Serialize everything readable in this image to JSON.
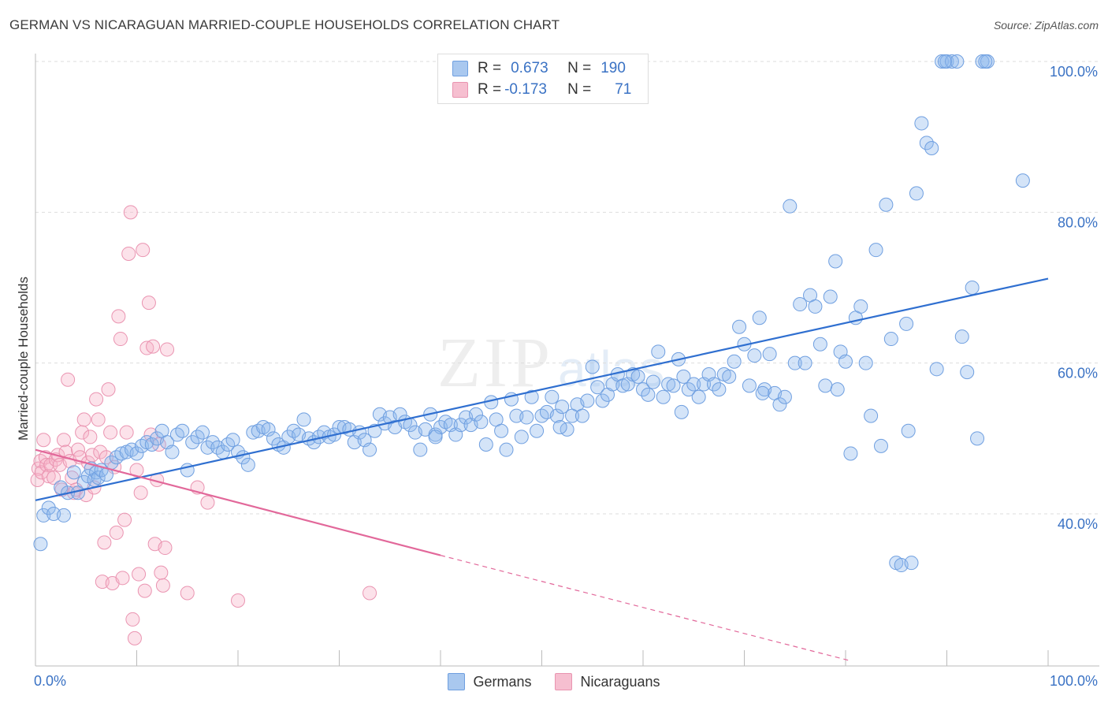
{
  "header": {
    "title": "GERMAN VS NICARAGUAN MARRIED-COUPLE HOUSEHOLDS CORRELATION CHART",
    "source": "Source: ZipAtlas.com"
  },
  "legend": {
    "r_label": "R =",
    "n_label": "N =",
    "rows": [
      {
        "r": "0.673",
        "n": "190",
        "color": "#a9c8ef",
        "border": "#6f9fe0"
      },
      {
        "r": "-0.173",
        "n": "71",
        "color": "#f6bfd0",
        "border": "#e994b0"
      }
    ]
  },
  "colors": {
    "german_fill": "rgba(143,184,236,0.38)",
    "german_stroke": "#6f9fe0",
    "german_line": "#2f6fd0",
    "nicaraguan_fill": "rgba(246,180,200,0.38)",
    "nicaraguan_stroke": "#ea94b1",
    "nicaraguan_line": "#e2689a",
    "axis_text": "#3a72c4",
    "grid": "#dddddd"
  },
  "chart_data": {
    "type": "scatter",
    "title": "GERMAN VS NICARAGUAN MARRIED-COUPLE HOUSEHOLDS CORRELATION CHART",
    "ylabel": "Married-couple Households",
    "xlabel": "",
    "xlim": [
      0,
      100
    ],
    "ylim": [
      21,
      102
    ],
    "x_tick_labels": [
      "0.0%",
      "100.0%"
    ],
    "y_ticks": [
      40,
      60,
      80,
      100
    ],
    "y_tick_labels": [
      "40.0%",
      "60.0%",
      "80.0%",
      "100.0%"
    ],
    "grid": true,
    "legend_position": "top-center",
    "series": [
      {
        "name": "Germans",
        "r": 0.673,
        "n": 190,
        "trend": [
          [
            0,
            41.8
          ],
          [
            100,
            71.2
          ]
        ],
        "points": [
          [
            0.5,
            36
          ],
          [
            0.8,
            39.8
          ],
          [
            1.3,
            40.8
          ],
          [
            1.8,
            40
          ],
          [
            2.5,
            43.5
          ],
          [
            2.8,
            39.8
          ],
          [
            3.2,
            42.8
          ],
          [
            3.8,
            45.5
          ],
          [
            4.2,
            42.8
          ],
          [
            4.8,
            44.2
          ],
          [
            5.2,
            45
          ],
          [
            5.5,
            46
          ],
          [
            5.8,
            44.5
          ],
          [
            6,
            45.5
          ],
          [
            6.2,
            44.8
          ],
          [
            6.5,
            45.8
          ],
          [
            7,
            45.2
          ],
          [
            7.5,
            46.8
          ],
          [
            8,
            47.5
          ],
          [
            8.5,
            48
          ],
          [
            9,
            48.2
          ],
          [
            9.5,
            48.5
          ],
          [
            10,
            48
          ],
          [
            10.5,
            49
          ],
          [
            11,
            49.5
          ],
          [
            11.5,
            49.2
          ],
          [
            12,
            50
          ],
          [
            12.5,
            51
          ],
          [
            13,
            49.5
          ],
          [
            13.5,
            48.2
          ],
          [
            14,
            50.5
          ],
          [
            14.5,
            51
          ],
          [
            15,
            45.8
          ],
          [
            15.5,
            49.5
          ],
          [
            16,
            50.2
          ],
          [
            16.5,
            50.8
          ],
          [
            17,
            48.8
          ],
          [
            17.5,
            49.5
          ],
          [
            18,
            48.8
          ],
          [
            18.5,
            48.2
          ],
          [
            19,
            49.2
          ],
          [
            19.5,
            49.8
          ],
          [
            20,
            48.2
          ],
          [
            20.5,
            47.5
          ],
          [
            21,
            46.5
          ],
          [
            21.5,
            50.8
          ],
          [
            22,
            51
          ],
          [
            22.5,
            51.5
          ],
          [
            23,
            51.2
          ],
          [
            23.5,
            50
          ],
          [
            24,
            49.2
          ],
          [
            24.5,
            48.8
          ],
          [
            25,
            50.2
          ],
          [
            25.5,
            51
          ],
          [
            26,
            50.5
          ],
          [
            26.5,
            52.5
          ],
          [
            27,
            50
          ],
          [
            27.5,
            49.5
          ],
          [
            28,
            50.2
          ],
          [
            28.5,
            50.8
          ],
          [
            29,
            50.2
          ],
          [
            29.5,
            50.5
          ],
          [
            30,
            51.5
          ],
          [
            30.5,
            51.5
          ],
          [
            31,
            51.2
          ],
          [
            31.5,
            49.5
          ],
          [
            32,
            50.8
          ],
          [
            32.5,
            49.8
          ],
          [
            33,
            48.5
          ],
          [
            33.5,
            51
          ],
          [
            34,
            53.2
          ],
          [
            34.5,
            52
          ],
          [
            35,
            52.8
          ],
          [
            35.5,
            51.5
          ],
          [
            36,
            53.2
          ],
          [
            36.5,
            52.2
          ],
          [
            37,
            51.8
          ],
          [
            37.5,
            50.8
          ],
          [
            38,
            48.5
          ],
          [
            38.5,
            51.2
          ],
          [
            39,
            53.2
          ],
          [
            39.5,
            50.5
          ],
          [
            40,
            51.5
          ],
          [
            40.5,
            52.2
          ],
          [
            41,
            51.8
          ],
          [
            41.5,
            50.5
          ],
          [
            42,
            51.8
          ],
          [
            42.5,
            52.8
          ],
          [
            43,
            51.8
          ],
          [
            43.5,
            53.2
          ],
          [
            44,
            52.2
          ],
          [
            44.5,
            49.2
          ],
          [
            45,
            54.8
          ],
          [
            45.5,
            52.5
          ],
          [
            46,
            51
          ],
          [
            46.5,
            48.5
          ],
          [
            47,
            55.2
          ],
          [
            47.5,
            53
          ],
          [
            48,
            50.2
          ],
          [
            48.5,
            52.8
          ],
          [
            49,
            55.5
          ],
          [
            49.5,
            51
          ],
          [
            50,
            53
          ],
          [
            50.5,
            53.5
          ],
          [
            51,
            55.5
          ],
          [
            51.5,
            53
          ],
          [
            52,
            54.2
          ],
          [
            52.5,
            51.2
          ],
          [
            53,
            53
          ],
          [
            53.5,
            54.5
          ],
          [
            54,
            53
          ],
          [
            54.5,
            55
          ],
          [
            55,
            59.5
          ],
          [
            55.5,
            56.8
          ],
          [
            56,
            55
          ],
          [
            56.5,
            55.8
          ],
          [
            57,
            57.2
          ],
          [
            57.5,
            58.5
          ],
          [
            58,
            57
          ],
          [
            58.5,
            57.2
          ],
          [
            59,
            58.5
          ],
          [
            59.5,
            58.2
          ],
          [
            60,
            56.5
          ],
          [
            60.5,
            55.8
          ],
          [
            61,
            57.5
          ],
          [
            61.5,
            61.5
          ],
          [
            62,
            55.5
          ],
          [
            62.5,
            57.2
          ],
          [
            63,
            57
          ],
          [
            63.5,
            60.5
          ],
          [
            64,
            58.2
          ],
          [
            64.5,
            56.5
          ],
          [
            65,
            57.2
          ],
          [
            65.5,
            55.5
          ],
          [
            66,
            57.2
          ],
          [
            66.5,
            58.5
          ],
          [
            67,
            57.2
          ],
          [
            67.5,
            56.5
          ],
          [
            68,
            58.5
          ],
          [
            68.5,
            58.2
          ],
          [
            69,
            60.2
          ],
          [
            69.5,
            64.8
          ],
          [
            70,
            62.5
          ],
          [
            70.5,
            57
          ],
          [
            71,
            61
          ],
          [
            71.5,
            66
          ],
          [
            72,
            56.5
          ],
          [
            72.5,
            61.2
          ],
          [
            73,
            56
          ],
          [
            73.5,
            54.5
          ],
          [
            74,
            55.5
          ],
          [
            74.5,
            80.8
          ],
          [
            75,
            60
          ],
          [
            75.5,
            67.8
          ],
          [
            76,
            60
          ],
          [
            76.5,
            69
          ],
          [
            77,
            67.5
          ],
          [
            77.5,
            62.5
          ],
          [
            78,
            57
          ],
          [
            78.5,
            68.8
          ],
          [
            79,
            73.5
          ],
          [
            79.5,
            61.5
          ],
          [
            80,
            60.2
          ],
          [
            80.5,
            48
          ],
          [
            81,
            66
          ],
          [
            81.5,
            67.5
          ],
          [
            82,
            60
          ],
          [
            82.5,
            53
          ],
          [
            83,
            75
          ],
          [
            83.5,
            49
          ],
          [
            84,
            81
          ],
          [
            84.5,
            63.2
          ],
          [
            85,
            33.5
          ],
          [
            85.5,
            33.2
          ],
          [
            86,
            65.2
          ],
          [
            86.5,
            33.5
          ],
          [
            87,
            82.5
          ],
          [
            87.5,
            91.8
          ],
          [
            88,
            89.2
          ],
          [
            88.5,
            88.5
          ],
          [
            89,
            59.2
          ],
          [
            89.5,
            100
          ],
          [
            90,
            100
          ],
          [
            90.5,
            100
          ],
          [
            91,
            100
          ],
          [
            91.5,
            63.5
          ],
          [
            92,
            58.8
          ],
          [
            92.5,
            70
          ],
          [
            93,
            50
          ],
          [
            93.5,
            100
          ],
          [
            94,
            100
          ],
          [
            97.5,
            84.2
          ],
          [
            93.8,
            100
          ],
          [
            89.8,
            100
          ],
          [
            86.2,
            51
          ],
          [
            79.2,
            56.5
          ],
          [
            71.8,
            56
          ],
          [
            63.8,
            53.5
          ],
          [
            51.8,
            51.5
          ],
          [
            39.5,
            50.2
          ]
        ]
      },
      {
        "name": "Nicaraguans",
        "r": -0.173,
        "n": 71,
        "trend": [
          [
            0,
            48.5
          ],
          [
            40,
            34.5
          ]
        ],
        "trend_dashed": [
          [
            40,
            34.5
          ],
          [
            80.5,
            20.5
          ]
        ],
        "points": [
          [
            0.2,
            44.5
          ],
          [
            0.3,
            46
          ],
          [
            0.5,
            47
          ],
          [
            0.6,
            45.5
          ],
          [
            0.8,
            49.8
          ],
          [
            1,
            47.5
          ],
          [
            1.1,
            46.5
          ],
          [
            1.3,
            45
          ],
          [
            1.5,
            46.5
          ],
          [
            1.8,
            44.8
          ],
          [
            2,
            47.2
          ],
          [
            2.2,
            47.8
          ],
          [
            2.4,
            46.5
          ],
          [
            2.6,
            43.2
          ],
          [
            2.8,
            49.8
          ],
          [
            3,
            48.2
          ],
          [
            3.2,
            57.8
          ],
          [
            3.4,
            47
          ],
          [
            3.6,
            44.8
          ],
          [
            3.8,
            42.8
          ],
          [
            4,
            43.2
          ],
          [
            4.2,
            48.5
          ],
          [
            4.4,
            47.5
          ],
          [
            4.6,
            50.8
          ],
          [
            4.8,
            52.5
          ],
          [
            5,
            42.5
          ],
          [
            5.2,
            46.8
          ],
          [
            5.4,
            50.2
          ],
          [
            5.6,
            47.8
          ],
          [
            5.8,
            43.5
          ],
          [
            6,
            55.2
          ],
          [
            6.2,
            52.5
          ],
          [
            6.4,
            48.2
          ],
          [
            6.6,
            31
          ],
          [
            6.8,
            36.2
          ],
          [
            7,
            47.5
          ],
          [
            7.2,
            56.5
          ],
          [
            7.4,
            50.8
          ],
          [
            7.6,
            30.8
          ],
          [
            7.8,
            46.2
          ],
          [
            8,
            37.5
          ],
          [
            8.2,
            66.2
          ],
          [
            8.4,
            63.2
          ],
          [
            8.6,
            31.5
          ],
          [
            8.8,
            39.2
          ],
          [
            9,
            50.8
          ],
          [
            9.2,
            74.5
          ],
          [
            9.4,
            80
          ],
          [
            9.6,
            26
          ],
          [
            9.8,
            23.5
          ],
          [
            10,
            45.8
          ],
          [
            10.2,
            32
          ],
          [
            10.4,
            42.8
          ],
          [
            10.6,
            75
          ],
          [
            10.8,
            29.8
          ],
          [
            11,
            62
          ],
          [
            11.2,
            68
          ],
          [
            11.4,
            50.5
          ],
          [
            11.6,
            62.2
          ],
          [
            11.8,
            36
          ],
          [
            12,
            44.5
          ],
          [
            12.2,
            49.2
          ],
          [
            12.4,
            32.2
          ],
          [
            12.6,
            30.5
          ],
          [
            12.8,
            35.5
          ],
          [
            13,
            61.8
          ],
          [
            15,
            29.5
          ],
          [
            16,
            43.5
          ],
          [
            17,
            41.5
          ],
          [
            20,
            28.5
          ],
          [
            33,
            29.5
          ]
        ]
      }
    ]
  }
}
